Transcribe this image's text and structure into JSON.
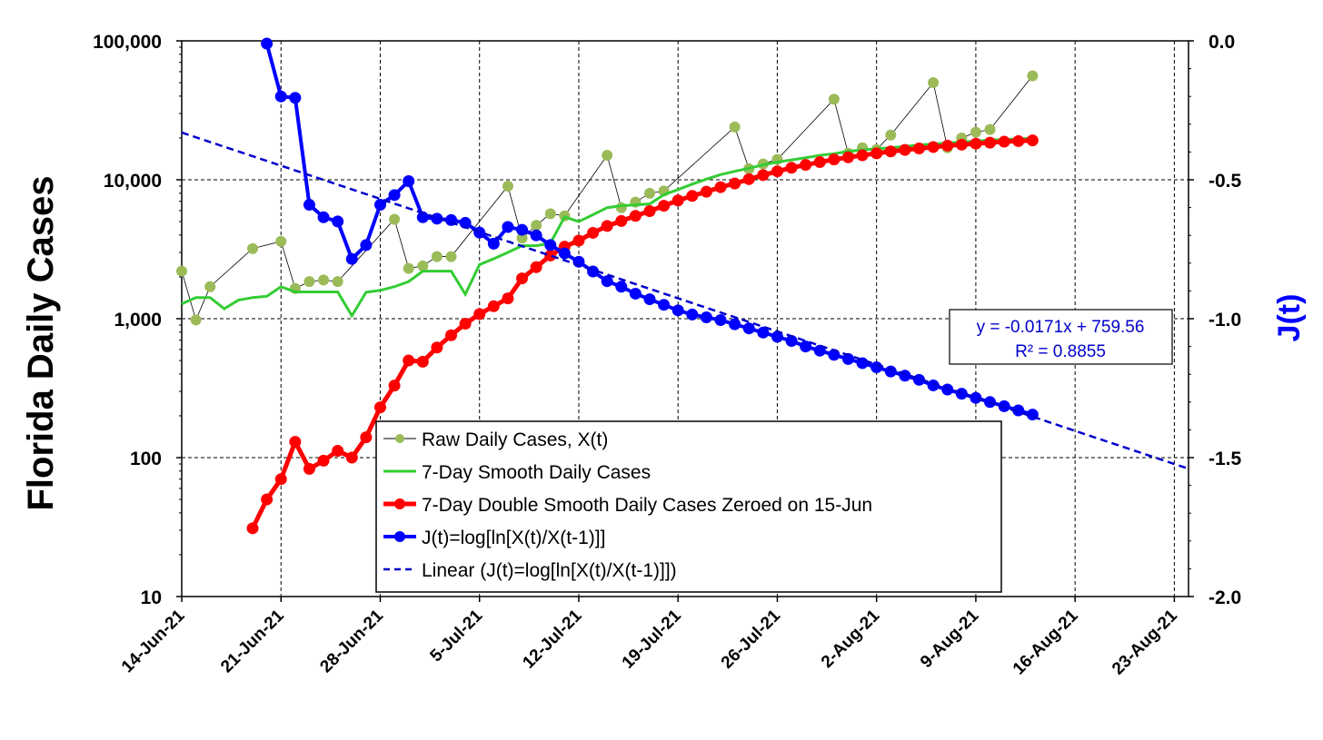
{
  "chart_data": {
    "type": "line",
    "ylabel": "Florida Daily Cases",
    "y2label": "J(t)",
    "yscale": "log",
    "ylim": [
      10,
      100000
    ],
    "y2lim": [
      -2.0,
      0.0
    ],
    "xlim": [
      "14-Jun-21",
      "24-Aug-21"
    ],
    "grid": true,
    "legend_position": "lower-center",
    "x_tick_labels": [
      "14-Jun-21",
      "21-Jun-21",
      "28-Jun-21",
      "5-Jul-21",
      "12-Jul-21",
      "19-Jul-21",
      "26-Jul-21",
      "2-Aug-21",
      "9-Aug-21",
      "16-Aug-21",
      "23-Aug-21"
    ],
    "y_tick_labels": [
      "10",
      "100",
      "1,000",
      "10,000",
      "100,000"
    ],
    "y2_tick_labels": [
      "-2.0",
      "-1.5",
      "-1.0",
      "-0.5",
      "0.0"
    ],
    "colors": {
      "raw": "#9bbb59",
      "smooth": "#33cc33",
      "double_smooth": "#ff0000",
      "j": "#0000ff",
      "linear": "#0000cc"
    },
    "series": [
      {
        "name": "Raw Daily Cases, X(t)",
        "axis": "left",
        "x": [
          "14-Jun-21",
          "15-Jun-21",
          "16-Jun-21",
          "19-Jun-21",
          "21-Jun-21",
          "22-Jun-21",
          "23-Jun-21",
          "24-Jun-21",
          "25-Jun-21",
          "29-Jun-21",
          "30-Jun-21",
          "1-Jul-21",
          "2-Jul-21",
          "3-Jul-21",
          "7-Jul-21",
          "8-Jul-21",
          "9-Jul-21",
          "10-Jul-21",
          "11-Jul-21",
          "14-Jul-21",
          "15-Jul-21",
          "16-Jul-21",
          "17-Jul-21",
          "18-Jul-21",
          "23-Jul-21",
          "24-Jul-21",
          "25-Jul-21",
          "26-Jul-21",
          "30-Jul-21",
          "31-Jul-21",
          "1-Aug-21",
          "2-Aug-21",
          "3-Aug-21",
          "6-Aug-21",
          "7-Aug-21",
          "8-Aug-21",
          "9-Aug-21",
          "10-Aug-21",
          "13-Aug-21"
        ],
        "values": [
          2200,
          980,
          1700,
          3200,
          3600,
          1650,
          1850,
          1900,
          1850,
          5200,
          2300,
          2400,
          2800,
          2800,
          9000,
          3800,
          4700,
          5700,
          5500,
          15000,
          6300,
          6900,
          8000,
          8300,
          24000,
          12000,
          13000,
          14000,
          38000,
          15500,
          17000,
          16500,
          21000,
          50000,
          17000,
          20000,
          22000,
          23000,
          56000
        ]
      },
      {
        "name": "7-Day Smooth Daily Cases",
        "axis": "left",
        "x": [
          "14-Jun-21",
          "15-Jun-21",
          "16-Jun-21",
          "17-Jun-21",
          "18-Jun-21",
          "19-Jun-21",
          "20-Jun-21",
          "21-Jun-21",
          "22-Jun-21",
          "23-Jun-21",
          "24-Jun-21",
          "25-Jun-21",
          "26-Jun-21",
          "27-Jun-21",
          "28-Jun-21",
          "29-Jun-21",
          "30-Jun-21",
          "1-Jul-21",
          "2-Jul-21",
          "3-Jul-21",
          "4-Jul-21",
          "5-Jul-21",
          "6-Jul-21",
          "7-Jul-21",
          "8-Jul-21",
          "9-Jul-21",
          "10-Jul-21",
          "11-Jul-21",
          "12-Jul-21",
          "13-Jul-21",
          "14-Jul-21",
          "15-Jul-21",
          "16-Jul-21",
          "17-Jul-21",
          "18-Jul-21",
          "19-Jul-21",
          "20-Jul-21",
          "21-Jul-21",
          "22-Jul-21",
          "23-Jul-21",
          "24-Jul-21",
          "25-Jul-21",
          "26-Jul-21",
          "27-Jul-21",
          "28-Jul-21",
          "29-Jul-21",
          "30-Jul-21",
          "31-Jul-21",
          "1-Aug-21",
          "2-Aug-21",
          "3-Aug-21",
          "4-Aug-21",
          "5-Aug-21",
          "6-Aug-21",
          "7-Aug-21",
          "8-Aug-21",
          "9-Aug-21",
          "10-Aug-21",
          "11-Aug-21",
          "12-Aug-21",
          "13-Aug-21"
        ],
        "values": [
          1280,
          1420,
          1420,
          1180,
          1360,
          1420,
          1450,
          1700,
          1560,
          1560,
          1560,
          1560,
          1050,
          1550,
          1600,
          1700,
          1850,
          2200,
          2200,
          2200,
          1500,
          2450,
          2700,
          3000,
          3350,
          3350,
          3500,
          5400,
          5000,
          5600,
          6300,
          6500,
          6600,
          6700,
          7800,
          8500,
          9300,
          10100,
          10900,
          11500,
          12100,
          12800,
          13400,
          13900,
          14400,
          15000,
          15400,
          16000,
          16400,
          16700,
          17000,
          17400,
          17800,
          18100,
          18400,
          18700,
          19000,
          19300,
          19500,
          19700,
          19900
        ]
      },
      {
        "name": "7-Day Double Smooth Daily Cases Zeroed on 15-Jun",
        "axis": "left",
        "x": [
          "19-Jun-21",
          "20-Jun-21",
          "21-Jun-21",
          "22-Jun-21",
          "23-Jun-21",
          "24-Jun-21",
          "25-Jun-21",
          "26-Jun-21",
          "27-Jun-21",
          "28-Jun-21",
          "29-Jun-21",
          "30-Jun-21",
          "1-Jul-21",
          "2-Jul-21",
          "3-Jul-21",
          "4-Jul-21",
          "5-Jul-21",
          "6-Jul-21",
          "7-Jul-21",
          "8-Jul-21",
          "9-Jul-21",
          "10-Jul-21",
          "11-Jul-21",
          "12-Jul-21",
          "13-Jul-21",
          "14-Jul-21",
          "15-Jul-21",
          "16-Jul-21",
          "17-Jul-21",
          "18-Jul-21",
          "19-Jul-21",
          "20-Jul-21",
          "21-Jul-21",
          "22-Jul-21",
          "23-Jul-21",
          "24-Jul-21",
          "25-Jul-21",
          "26-Jul-21",
          "27-Jul-21",
          "28-Jul-21",
          "29-Jul-21",
          "30-Jul-21",
          "31-Jul-21",
          "1-Aug-21",
          "2-Aug-21",
          "3-Aug-21",
          "4-Aug-21",
          "5-Aug-21",
          "6-Aug-21",
          "7-Aug-21",
          "8-Aug-21",
          "9-Aug-21",
          "10-Aug-21",
          "11-Aug-21",
          "12-Aug-21",
          "13-Aug-21"
        ],
        "values": [
          31,
          50,
          70,
          130,
          83,
          95,
          112,
          100,
          140,
          230,
          330,
          500,
          490,
          620,
          760,
          920,
          1080,
          1230,
          1400,
          1950,
          2350,
          2850,
          3300,
          3650,
          4150,
          4650,
          5050,
          5500,
          5950,
          6500,
          7100,
          7650,
          8200,
          8850,
          9400,
          10100,
          10800,
          11500,
          12200,
          12800,
          13400,
          14000,
          14500,
          15000,
          15500,
          16000,
          16400,
          16800,
          17200,
          17600,
          17900,
          18200,
          18500,
          18800,
          19000,
          19200
        ]
      },
      {
        "name": "J(t)=log[ln[X(t)/X(t-1)]]",
        "axis": "right",
        "x": [
          "20-Jun-21",
          "21-Jun-21",
          "22-Jun-21",
          "23-Jun-21",
          "24-Jun-21",
          "25-Jun-21",
          "26-Jun-21",
          "27-Jun-21",
          "28-Jun-21",
          "29-Jun-21",
          "30-Jun-21",
          "1-Jul-21",
          "2-Jul-21",
          "3-Jul-21",
          "4-Jul-21",
          "5-Jul-21",
          "6-Jul-21",
          "7-Jul-21",
          "8-Jul-21",
          "9-Jul-21",
          "10-Jul-21",
          "11-Jul-21",
          "12-Jul-21",
          "13-Jul-21",
          "14-Jul-21",
          "15-Jul-21",
          "16-Jul-21",
          "17-Jul-21",
          "18-Jul-21",
          "19-Jul-21",
          "20-Jul-21",
          "21-Jul-21",
          "22-Jul-21",
          "23-Jul-21",
          "24-Jul-21",
          "25-Jul-21",
          "26-Jul-21",
          "27-Jul-21",
          "28-Jul-21",
          "29-Jul-21",
          "30-Jul-21",
          "31-Jul-21",
          "1-Aug-21",
          "2-Aug-21",
          "3-Aug-21",
          "4-Aug-21",
          "5-Aug-21",
          "6-Aug-21",
          "7-Aug-21",
          "8-Aug-21",
          "9-Aug-21",
          "10-Aug-21",
          "11-Aug-21",
          "12-Aug-21",
          "13-Aug-21"
        ],
        "values": [
          -0.01,
          -0.2,
          -0.205,
          -0.59,
          -0.635,
          -0.65,
          -0.785,
          -0.735,
          -0.59,
          -0.555,
          -0.505,
          -0.635,
          -0.64,
          -0.645,
          -0.655,
          -0.69,
          -0.73,
          -0.67,
          -0.68,
          -0.7,
          -0.735,
          -0.765,
          -0.795,
          -0.83,
          -0.865,
          -0.885,
          -0.91,
          -0.93,
          -0.95,
          -0.97,
          -0.985,
          -0.995,
          -1.005,
          -1.02,
          -1.035,
          -1.05,
          -1.065,
          -1.08,
          -1.1,
          -1.115,
          -1.13,
          -1.145,
          -1.16,
          -1.175,
          -1.19,
          -1.205,
          -1.22,
          -1.24,
          -1.255,
          -1.27,
          -1.285,
          -1.3,
          -1.315,
          -1.33,
          -1.345
        ]
      },
      {
        "name": "Linear (J(t)=log[ln[X(t)/X(t-1)]])",
        "axis": "right",
        "x": [
          "14-Jun-21",
          "24-Aug-21"
        ],
        "values": [
          -0.33,
          -1.54
        ]
      }
    ],
    "trendline_equation": "y = -0.0171x + 759.56",
    "trendline_r2": "R² = 0.8855"
  }
}
